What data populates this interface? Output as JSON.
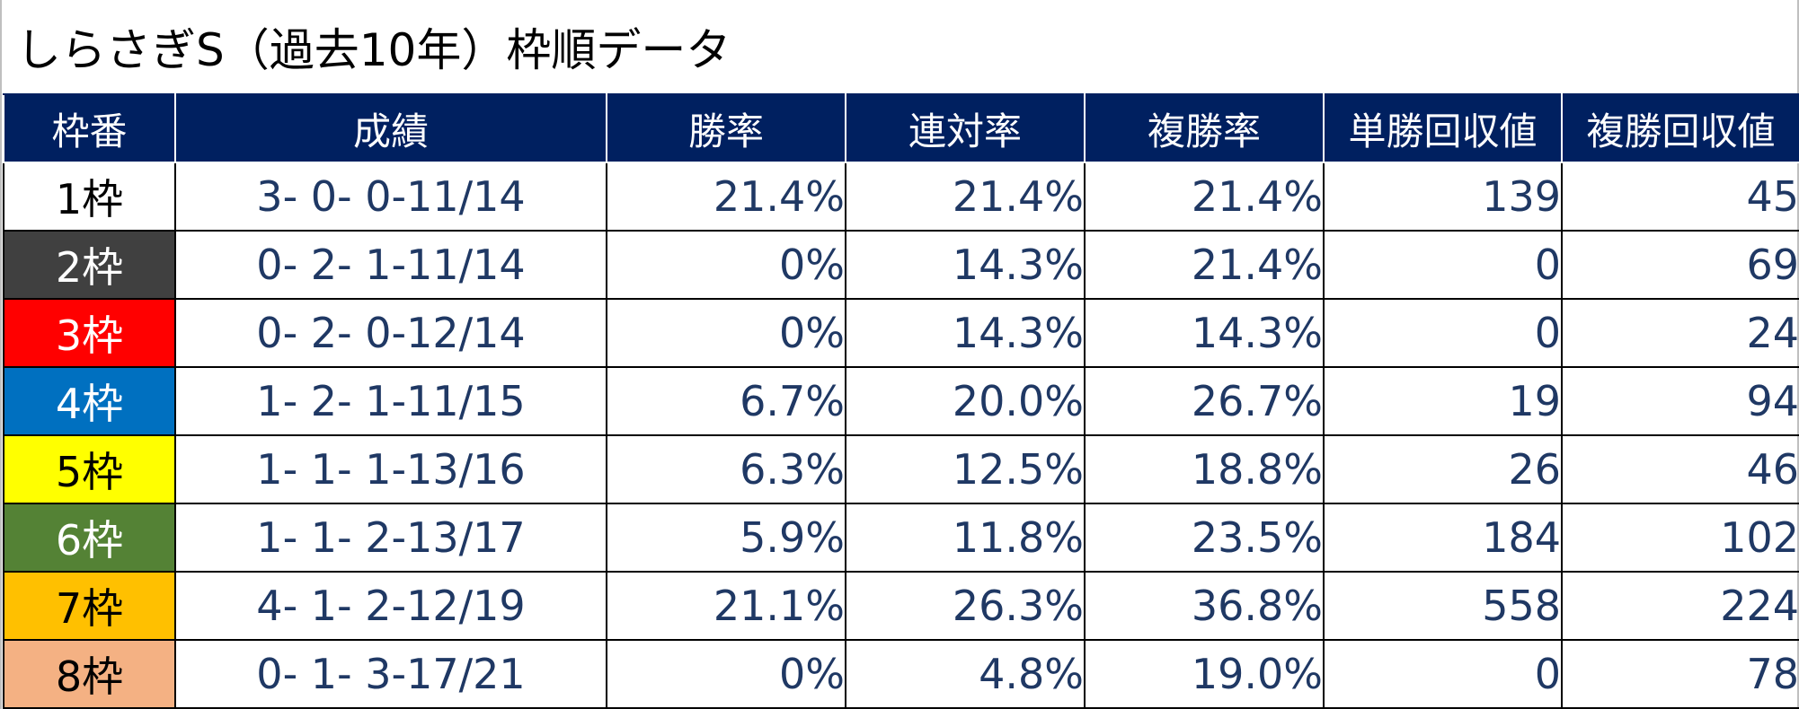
{
  "title": "しらさぎS（過去10年）枠順データ",
  "headers": [
    "枠番",
    "成績",
    "勝率",
    "連対率",
    "複勝率",
    "単勝回収値",
    "複勝回収値"
  ],
  "rows": [
    {
      "frame": "1枠",
      "record": "3- 0- 0-11/14",
      "win": "21.4%",
      "quinella": "21.4%",
      "show": "21.4%",
      "win_return": "139",
      "show_return": "45",
      "bg": "#ffffff",
      "fg": "#000000"
    },
    {
      "frame": "2枠",
      "record": "0- 2- 1-11/14",
      "win": "0%",
      "quinella": "14.3%",
      "show": "21.4%",
      "win_return": "0",
      "show_return": "69",
      "bg": "#404040",
      "fg": "#ffffff"
    },
    {
      "frame": "3枠",
      "record": "0- 2- 0-12/14",
      "win": "0%",
      "quinella": "14.3%",
      "show": "14.3%",
      "win_return": "0",
      "show_return": "24",
      "bg": "#ff0000",
      "fg": "#ffffff"
    },
    {
      "frame": "4枠",
      "record": "1- 2- 1-11/15",
      "win": "6.7%",
      "quinella": "20.0%",
      "show": "26.7%",
      "win_return": "19",
      "show_return": "94",
      "bg": "#0070c0",
      "fg": "#ffffff"
    },
    {
      "frame": "5枠",
      "record": "1- 1- 1-13/16",
      "win": "6.3%",
      "quinella": "12.5%",
      "show": "18.8%",
      "win_return": "26",
      "show_return": "46",
      "bg": "#ffff00",
      "fg": "#000000"
    },
    {
      "frame": "6枠",
      "record": "1- 1- 2-13/17",
      "win": "5.9%",
      "quinella": "11.8%",
      "show": "23.5%",
      "win_return": "184",
      "show_return": "102",
      "bg": "#548235",
      "fg": "#ffffff"
    },
    {
      "frame": "7枠",
      "record": "4- 1- 2-12/19",
      "win": "21.1%",
      "quinella": "26.3%",
      "show": "36.8%",
      "win_return": "558",
      "show_return": "224",
      "bg": "#ffc000",
      "fg": "#000000"
    },
    {
      "frame": "8枠",
      "record": "0- 1- 3-17/21",
      "win": "0%",
      "quinella": "4.8%",
      "show": "19.0%",
      "win_return": "0",
      "show_return": "78",
      "bg": "#f4b183",
      "fg": "#000000"
    }
  ],
  "colors": {
    "header_bg": "#002060",
    "header_text": "#ffffff",
    "cell_text": "#1f3864"
  }
}
